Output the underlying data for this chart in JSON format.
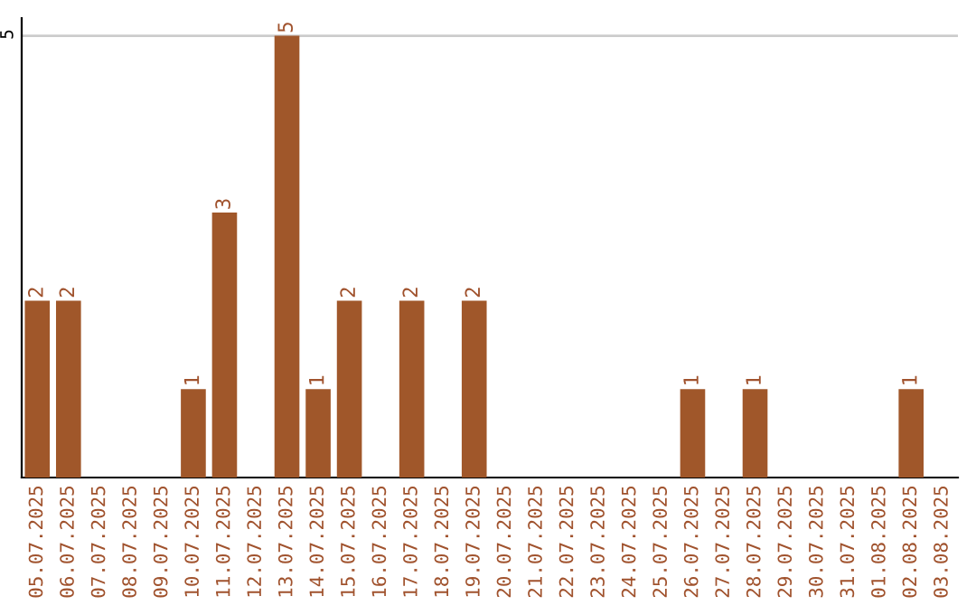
{
  "chart_data": {
    "type": "bar",
    "categories": [
      "05.07.2025",
      "06.07.2025",
      "07.07.2025",
      "08.07.2025",
      "09.07.2025",
      "10.07.2025",
      "11.07.2025",
      "12.07.2025",
      "13.07.2025",
      "14.07.2025",
      "15.07.2025",
      "16.07.2025",
      "17.07.2025",
      "18.07.2025",
      "19.07.2025",
      "20.07.2025",
      "21.07.2025",
      "22.07.2025",
      "23.07.2025",
      "24.07.2025",
      "25.07.2025",
      "26.07.2025",
      "27.07.2025",
      "28.07.2025",
      "29.07.2025",
      "30.07.2025",
      "31.07.2025",
      "01.08.2025",
      "02.08.2025",
      "03.08.2025"
    ],
    "values": [
      2,
      2,
      0,
      0,
      0,
      1,
      3,
      0,
      5,
      1,
      2,
      0,
      2,
      0,
      2,
      0,
      0,
      0,
      0,
      0,
      0,
      1,
      0,
      1,
      0,
      0,
      0,
      0,
      1,
      0
    ],
    "value_labels": [
      "2",
      "2",
      null,
      null,
      null,
      "1",
      "3",
      null,
      "5",
      "1",
      "2",
      null,
      "2",
      null,
      "2",
      null,
      null,
      null,
      null,
      null,
      null,
      "1",
      null,
      "1",
      null,
      null,
      null,
      null,
      "1",
      null
    ],
    "color": "#a0572a",
    "ylim": [
      0,
      5.2
    ],
    "yticks": [
      5
    ],
    "grid": "y"
  }
}
